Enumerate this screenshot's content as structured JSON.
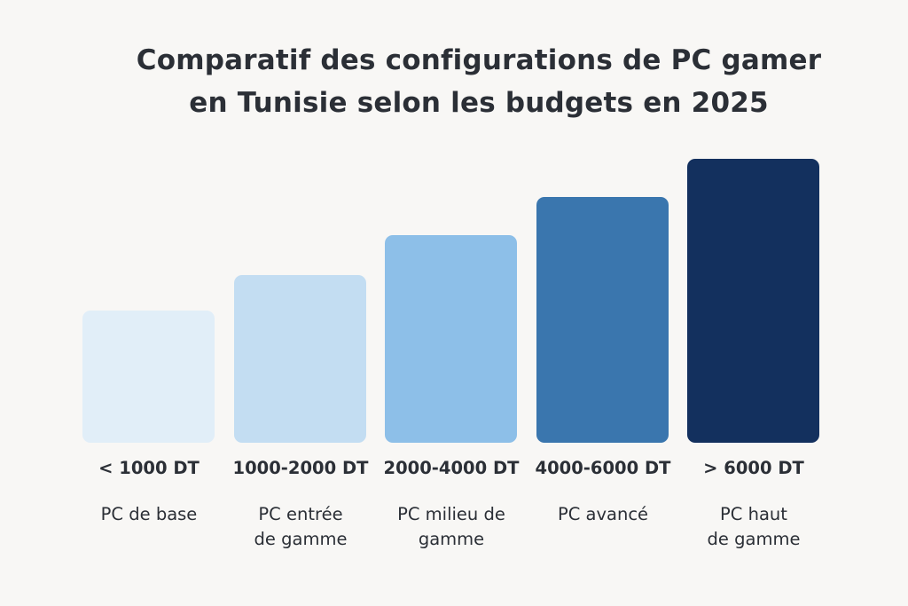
{
  "chart_data": {
    "type": "bar",
    "title_lines": [
      "Comparatif des configurations de PC gamer",
      "en Tunisie selon les budgets en 2025"
    ],
    "categories": [
      "< 1000 DT",
      "1000-2000 DT",
      "2000-4000 DT",
      "4000-6000 DT",
      "> 6000 DT"
    ],
    "descriptions": [
      [
        "PC de base"
      ],
      [
        "PC entrée",
        "de gamme"
      ],
      [
        "PC milieu de",
        "gamme"
      ],
      [
        "PC avancé"
      ],
      [
        "PC haut",
        "de gamme"
      ]
    ],
    "values": [
      1,
      1.27,
      1.57,
      1.86,
      2.15
    ],
    "ylim": [
      0,
      2.15
    ],
    "colors": [
      "#e1eef8",
      "#c3ddf2",
      "#8dbfe8",
      "#3a76ae",
      "#13305e"
    ],
    "xlabel": "",
    "ylabel": "",
    "grid": false,
    "legend": "none"
  }
}
